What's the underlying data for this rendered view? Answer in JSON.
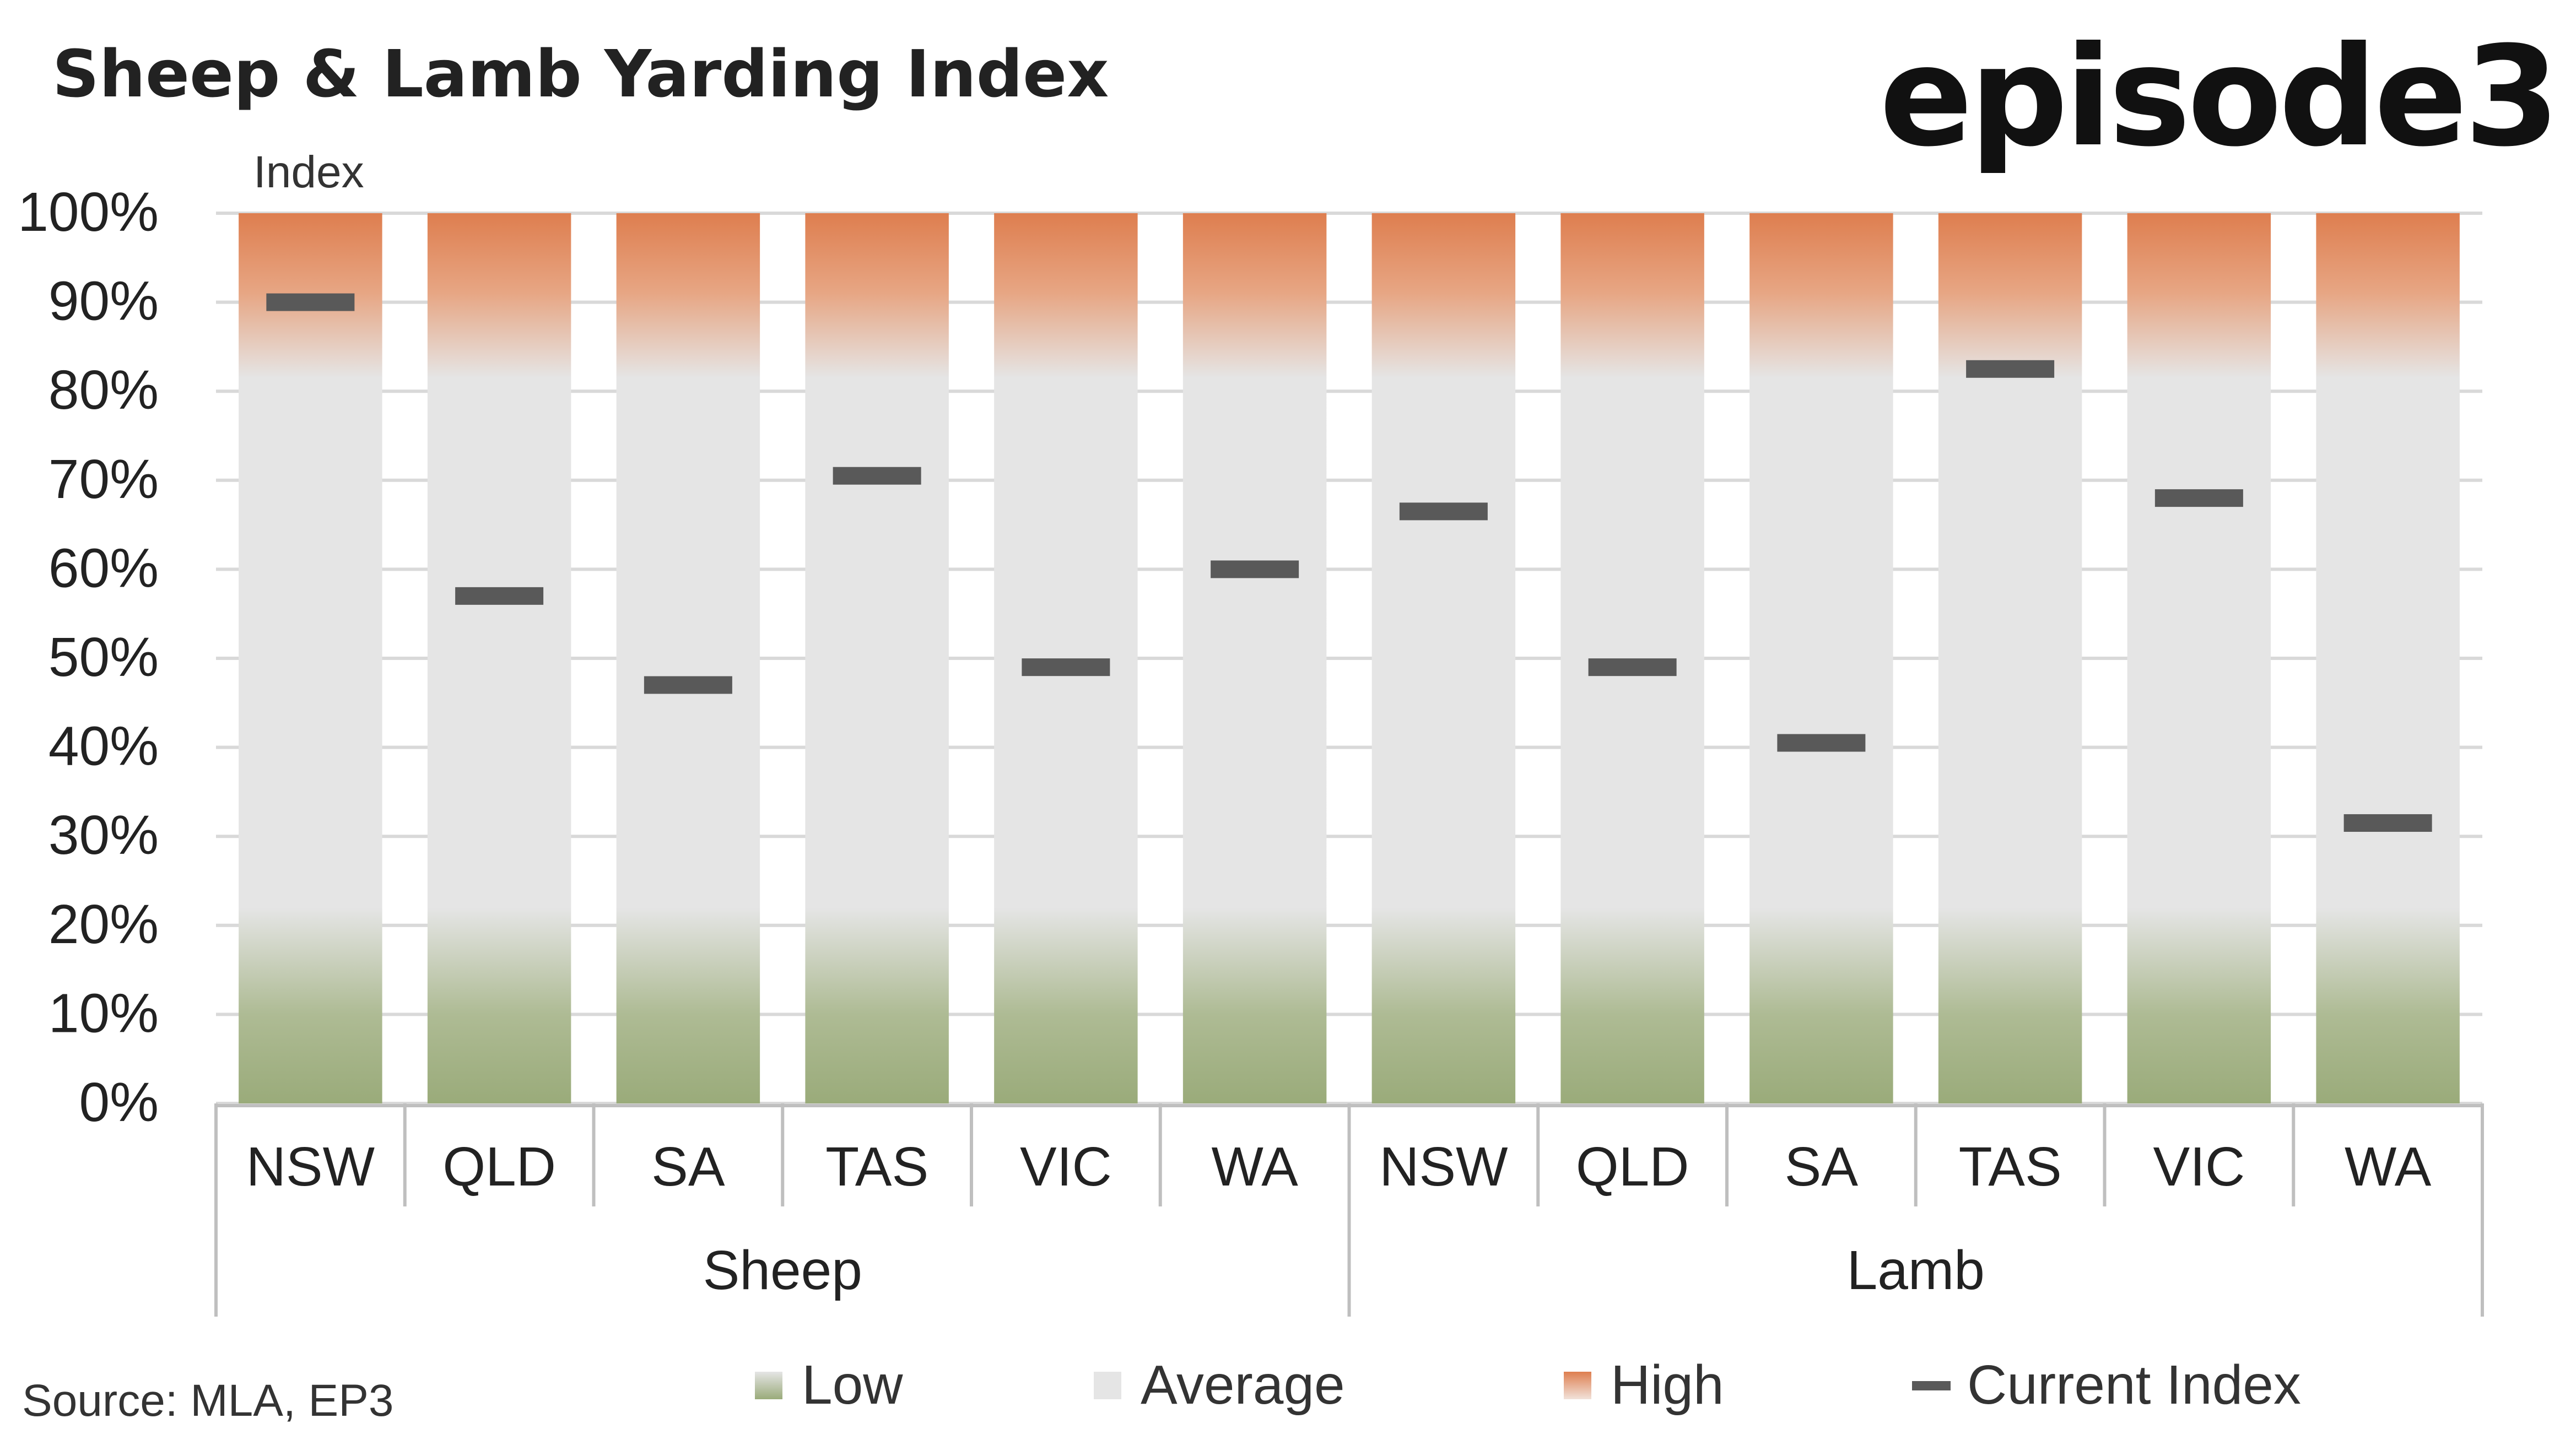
{
  "title": "Sheep & Lamb Yarding Index",
  "brand": "episode3",
  "source": "Source: MLA, EP3",
  "colors": {
    "low": "#9aab7a",
    "average": "#e5e5e5",
    "high": "#de7e4f",
    "current_index": "#595959",
    "grid": "#d9d9d9",
    "axis": "#bfbfbf",
    "text": "#222222"
  },
  "chart_data": {
    "type": "bar",
    "title": "Sheep & Lamb Yarding Index",
    "ylabel": "Index",
    "ylim": [
      0,
      100
    ],
    "yticks": [
      "0%",
      "10%",
      "20%",
      "30%",
      "40%",
      "50%",
      "60%",
      "70%",
      "80%",
      "90%",
      "100%"
    ],
    "grid": true,
    "groups": [
      {
        "name": "Sheep",
        "categories": [
          "NSW",
          "QLD",
          "SA",
          "TAS",
          "VIC",
          "WA"
        ]
      },
      {
        "name": "Lamb",
        "categories": [
          "NSW",
          "QLD",
          "SA",
          "TAS",
          "VIC",
          "WA"
        ]
      }
    ],
    "bands": [
      {
        "name": "Low",
        "from": 0,
        "to": 20
      },
      {
        "name": "Average",
        "from": 20,
        "to": 80
      },
      {
        "name": "High",
        "from": 80,
        "to": 100
      }
    ],
    "series": [
      {
        "name": "Current Index",
        "values": [
          90,
          57,
          47,
          70.5,
          49,
          60,
          66.5,
          49,
          40.5,
          82.5,
          68,
          31.5
        ]
      }
    ],
    "legend": [
      "Low",
      "Average",
      "High",
      "Current Index"
    ],
    "legend_position": "bottom"
  }
}
